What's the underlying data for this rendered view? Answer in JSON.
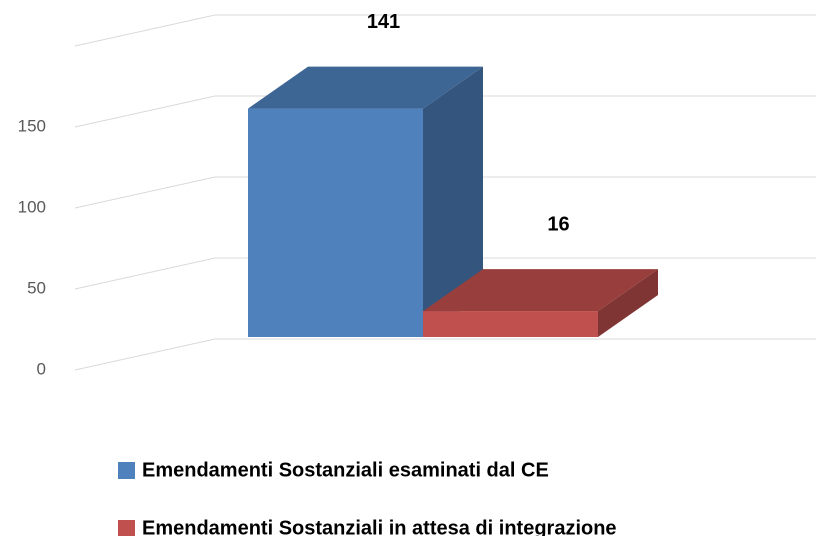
{
  "chart_data": {
    "type": "bar3d",
    "series": [
      {
        "name": "Emendamenti Sostanziali esaminati dal CE",
        "color": "#4f81bd",
        "values": [
          141
        ]
      },
      {
        "name": "Emendamenti Sostanziali in attesa di integrazione",
        "color": "#c0504d",
        "values": [
          16
        ]
      }
    ],
    "ylim": [
      0,
      200
    ],
    "yticks": [
      0,
      50,
      100,
      150
    ],
    "grid": true,
    "legend": "bottom"
  }
}
